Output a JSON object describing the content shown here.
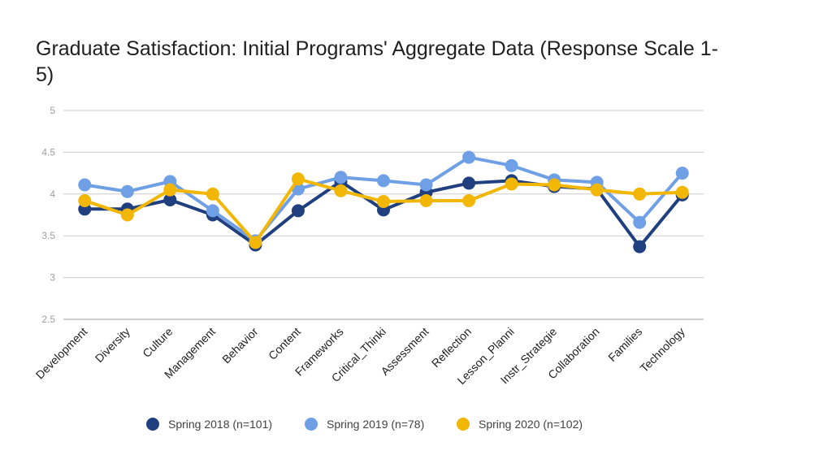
{
  "chart_data": {
    "type": "line",
    "title": "Graduate Satisfaction: Initial Programs' Aggregate Data (Response Scale 1-5)",
    "xlabel": "",
    "ylabel": "",
    "ylim": [
      2.5,
      5
    ],
    "yticks": [
      "2.5",
      "3",
      "3.5",
      "4",
      "4.5",
      "5"
    ],
    "grid": true,
    "legend_position": "bottom",
    "categories": [
      "Development",
      "Diversity",
      "Culture",
      "Management",
      "Behavior",
      "Content",
      "Frameworks",
      "Critical_Thinki",
      "Assessment",
      "Reflection",
      "Lesson_Planni",
      "Instr_Strategie",
      "Collaboration",
      "Families",
      "Technology"
    ],
    "series": [
      {
        "name": "Spring 2018 (n=101)",
        "color": "#1f3f7f",
        "values": [
          3.82,
          3.82,
          3.93,
          3.75,
          3.39,
          3.8,
          4.15,
          3.81,
          4.02,
          4.13,
          4.16,
          4.09,
          4.06,
          3.37,
          3.99
        ]
      },
      {
        "name": "Spring 2019 (n=78)",
        "color": "#6fa0e6",
        "values": [
          4.11,
          4.03,
          4.15,
          3.8,
          3.44,
          4.06,
          4.2,
          4.16,
          4.11,
          4.44,
          4.34,
          4.17,
          4.14,
          3.66,
          4.25
        ]
      },
      {
        "name": "Spring 2020 (n=102)",
        "color": "#f2b705",
        "values": [
          3.92,
          3.75,
          4.05,
          4.0,
          3.42,
          4.18,
          4.04,
          3.91,
          3.92,
          3.92,
          4.12,
          4.11,
          4.05,
          4.0,
          4.02
        ]
      }
    ]
  }
}
